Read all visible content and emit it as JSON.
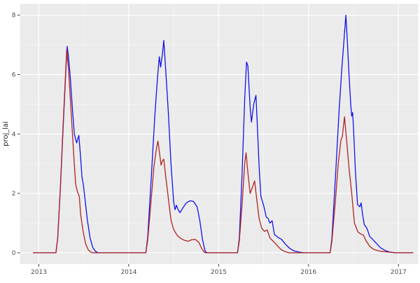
{
  "chart_data": {
    "type": "line",
    "title": "",
    "xlabel": "",
    "ylabel": "proj_lai",
    "legend_position": "none",
    "grid": true,
    "panel_bg": "#EBEBEB",
    "grid_major_color": "#FFFFFF",
    "grid_minor_color": "#F5F5F5",
    "tick_color": "#333333",
    "tick_label_color": "#4D4D4D",
    "axis_title_color": "#262626",
    "x_ticks": [
      2013,
      2014,
      2015,
      2016,
      2017
    ],
    "x_tick_labels": [
      "2013",
      "2014",
      "2015",
      "2016",
      "2017"
    ],
    "x_minor_ticks": [
      2013.5,
      2014.5,
      2015.5,
      2016.5
    ],
    "y_ticks": [
      0,
      2,
      4,
      6,
      8
    ],
    "y_tick_labels": [
      "0",
      "2",
      "4",
      "6",
      "8"
    ],
    "y_minor_ticks": [
      1,
      3,
      5,
      7
    ],
    "xlim": [
      2012.79,
      2017.22
    ],
    "ylim": [
      -0.38,
      8.38
    ],
    "series": [
      {
        "name": "blue-line",
        "color": "#1212EC",
        "points": [
          [
            2012.94,
            0
          ],
          [
            2013.19,
            0
          ],
          [
            2013.21,
            0.5
          ],
          [
            2013.24,
            2.2
          ],
          [
            2013.27,
            4.2
          ],
          [
            2013.3,
            6.1
          ],
          [
            2013.315,
            6.95
          ],
          [
            2013.33,
            6.6
          ],
          [
            2013.35,
            5.9
          ],
          [
            2013.37,
            5.0
          ],
          [
            2013.395,
            4.0
          ],
          [
            2013.42,
            3.7
          ],
          [
            2013.445,
            3.95
          ],
          [
            2013.465,
            3.2
          ],
          [
            2013.48,
            2.55
          ],
          [
            2013.495,
            2.3
          ],
          [
            2013.51,
            1.9
          ],
          [
            2013.54,
            1.1
          ],
          [
            2013.57,
            0.5
          ],
          [
            2013.6,
            0.18
          ],
          [
            2013.63,
            0.05
          ],
          [
            2013.66,
            0
          ],
          [
            2014.19,
            0
          ],
          [
            2014.21,
            0.5
          ],
          [
            2014.25,
            2.5
          ],
          [
            2014.29,
            4.6
          ],
          [
            2014.32,
            5.9
          ],
          [
            2014.34,
            6.6
          ],
          [
            2014.355,
            6.25
          ],
          [
            2014.375,
            6.7
          ],
          [
            2014.39,
            7.15
          ],
          [
            2014.41,
            6.2
          ],
          [
            2014.44,
            4.75
          ],
          [
            2014.47,
            3.0
          ],
          [
            2014.5,
            1.7
          ],
          [
            2014.515,
            1.45
          ],
          [
            2014.53,
            1.6
          ],
          [
            2014.55,
            1.45
          ],
          [
            2014.57,
            1.35
          ],
          [
            2014.6,
            1.5
          ],
          [
            2014.64,
            1.68
          ],
          [
            2014.68,
            1.75
          ],
          [
            2014.72,
            1.73
          ],
          [
            2014.76,
            1.55
          ],
          [
            2014.79,
            1.1
          ],
          [
            2014.82,
            0.45
          ],
          [
            2014.85,
            0.05
          ],
          [
            2014.87,
            0
          ],
          [
            2015.21,
            0
          ],
          [
            2015.23,
            0.5
          ],
          [
            2015.26,
            2.6
          ],
          [
            2015.29,
            5.2
          ],
          [
            2015.31,
            6.42
          ],
          [
            2015.325,
            6.3
          ],
          [
            2015.35,
            4.9
          ],
          [
            2015.365,
            4.4
          ],
          [
            2015.39,
            5.0
          ],
          [
            2015.415,
            5.3
          ],
          [
            2015.43,
            4.3
          ],
          [
            2015.45,
            2.9
          ],
          [
            2015.47,
            1.9
          ],
          [
            2015.5,
            1.6
          ],
          [
            2015.53,
            1.2
          ],
          [
            2015.55,
            1.16
          ],
          [
            2015.57,
            1.0
          ],
          [
            2015.595,
            1.08
          ],
          [
            2015.62,
            0.62
          ],
          [
            2015.66,
            0.52
          ],
          [
            2015.7,
            0.45
          ],
          [
            2015.74,
            0.3
          ],
          [
            2015.79,
            0.15
          ],
          [
            2015.84,
            0.06
          ],
          [
            2015.9,
            0.02
          ],
          [
            2015.95,
            0
          ],
          [
            2016.24,
            0
          ],
          [
            2016.26,
            0.5
          ],
          [
            2016.3,
            2.6
          ],
          [
            2016.34,
            4.8
          ],
          [
            2016.37,
            6.2
          ],
          [
            2016.4,
            7.4
          ],
          [
            2016.415,
            8.0
          ],
          [
            2016.43,
            7.2
          ],
          [
            2016.45,
            6.0
          ],
          [
            2016.47,
            4.95
          ],
          [
            2016.48,
            4.6
          ],
          [
            2016.49,
            4.72
          ],
          [
            2016.5,
            4.2
          ],
          [
            2016.52,
            2.8
          ],
          [
            2016.545,
            1.62
          ],
          [
            2016.57,
            1.55
          ],
          [
            2016.585,
            1.68
          ],
          [
            2016.6,
            1.3
          ],
          [
            2016.62,
            0.95
          ],
          [
            2016.65,
            0.82
          ],
          [
            2016.68,
            0.55
          ],
          [
            2016.72,
            0.43
          ],
          [
            2016.76,
            0.3
          ],
          [
            2016.8,
            0.17
          ],
          [
            2016.85,
            0.08
          ],
          [
            2016.9,
            0.03
          ],
          [
            2016.96,
            0
          ],
          [
            2017.16,
            0
          ]
        ]
      },
      {
        "name": "red-line",
        "color": "#B02323",
        "points": [
          [
            2012.94,
            0
          ],
          [
            2013.19,
            0
          ],
          [
            2013.21,
            0.5
          ],
          [
            2013.24,
            2.2
          ],
          [
            2013.27,
            4.3
          ],
          [
            2013.3,
            6.2
          ],
          [
            2013.31,
            6.85
          ],
          [
            2013.33,
            6.2
          ],
          [
            2013.35,
            5.2
          ],
          [
            2013.37,
            4.2
          ],
          [
            2013.39,
            3.2
          ],
          [
            2013.41,
            2.3
          ],
          [
            2013.43,
            2.05
          ],
          [
            2013.45,
            1.9
          ],
          [
            2013.465,
            1.3
          ],
          [
            2013.48,
            0.97
          ],
          [
            2013.5,
            0.6
          ],
          [
            2013.52,
            0.3
          ],
          [
            2013.55,
            0.1
          ],
          [
            2013.58,
            0.02
          ],
          [
            2013.6,
            0
          ],
          [
            2014.19,
            0
          ],
          [
            2014.21,
            0.4
          ],
          [
            2014.25,
            1.8
          ],
          [
            2014.28,
            2.9
          ],
          [
            2014.31,
            3.55
          ],
          [
            2014.325,
            3.76
          ],
          [
            2014.345,
            3.3
          ],
          [
            2014.36,
            2.95
          ],
          [
            2014.375,
            3.1
          ],
          [
            2014.39,
            3.15
          ],
          [
            2014.41,
            2.6
          ],
          [
            2014.44,
            1.85
          ],
          [
            2014.47,
            1.1
          ],
          [
            2014.5,
            0.78
          ],
          [
            2014.54,
            0.58
          ],
          [
            2014.58,
            0.48
          ],
          [
            2014.62,
            0.42
          ],
          [
            2014.66,
            0.39
          ],
          [
            2014.7,
            0.44
          ],
          [
            2014.74,
            0.45
          ],
          [
            2014.78,
            0.35
          ],
          [
            2014.81,
            0.15
          ],
          [
            2014.84,
            0.02
          ],
          [
            2014.86,
            0
          ],
          [
            2015.21,
            0
          ],
          [
            2015.23,
            0.4
          ],
          [
            2015.26,
            1.6
          ],
          [
            2015.29,
            3.0
          ],
          [
            2015.305,
            3.37
          ],
          [
            2015.325,
            2.7
          ],
          [
            2015.35,
            2.0
          ],
          [
            2015.375,
            2.2
          ],
          [
            2015.4,
            2.42
          ],
          [
            2015.42,
            1.9
          ],
          [
            2015.45,
            1.15
          ],
          [
            2015.48,
            0.82
          ],
          [
            2015.51,
            0.72
          ],
          [
            2015.54,
            0.77
          ],
          [
            2015.57,
            0.5
          ],
          [
            2015.61,
            0.38
          ],
          [
            2015.65,
            0.25
          ],
          [
            2015.69,
            0.12
          ],
          [
            2015.73,
            0.05
          ],
          [
            2015.78,
            0
          ],
          [
            2016.24,
            0
          ],
          [
            2016.26,
            0.4
          ],
          [
            2016.3,
            1.8
          ],
          [
            2016.33,
            3.0
          ],
          [
            2016.36,
            3.8
          ],
          [
            2016.375,
            3.9
          ],
          [
            2016.4,
            4.58
          ],
          [
            2016.42,
            3.9
          ],
          [
            2016.45,
            2.85
          ],
          [
            2016.48,
            2.0
          ],
          [
            2016.51,
            1.0
          ],
          [
            2016.55,
            0.7
          ],
          [
            2016.58,
            0.63
          ],
          [
            2016.61,
            0.6
          ],
          [
            2016.64,
            0.4
          ],
          [
            2016.68,
            0.22
          ],
          [
            2016.72,
            0.12
          ],
          [
            2016.77,
            0.07
          ],
          [
            2016.83,
            0.04
          ],
          [
            2016.9,
            0.02
          ],
          [
            2016.97,
            0
          ],
          [
            2017.16,
            0
          ]
        ]
      }
    ]
  }
}
